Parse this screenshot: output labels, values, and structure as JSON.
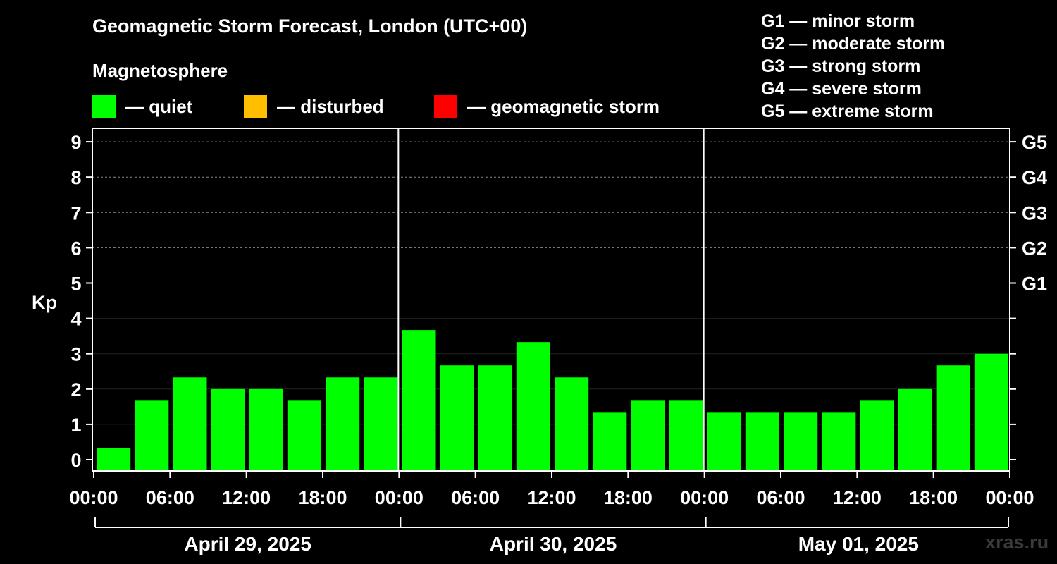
{
  "title": "Geomagnetic Storm Forecast, London (UTC+00)",
  "magnetosphere": {
    "heading": "Magnetosphere",
    "legend": [
      {
        "label": "— quiet",
        "color": "#00ff00"
      },
      {
        "label": "— disturbed",
        "color": "#ffbf00"
      },
      {
        "label": "— geomagnetic storm",
        "color": "#ff0000"
      }
    ]
  },
  "storm_scale": [
    "G1 — minor storm",
    "G2 — moderate storm",
    "G3 — strong storm",
    "G4 — severe storm",
    "G5 — extreme storm"
  ],
  "watermark": "xras.ru",
  "chart_data": {
    "type": "bar",
    "ylabel": "Kp",
    "ylim": [
      0,
      9
    ],
    "y_ticks": [
      "0",
      "1",
      "2",
      "3",
      "4",
      "5",
      "6",
      "7",
      "8",
      "9"
    ],
    "right_ticks": [
      {
        "kp": 5,
        "label": "G1"
      },
      {
        "kp": 6,
        "label": "G2"
      },
      {
        "kp": 7,
        "label": "G3"
      },
      {
        "kp": 8,
        "label": "G4"
      },
      {
        "kp": 9,
        "label": "G5"
      }
    ],
    "grid": true,
    "x_ticks": [
      "00:00",
      "06:00",
      "12:00",
      "18:00",
      "00:00",
      "06:00",
      "12:00",
      "18:00",
      "00:00",
      "06:00",
      "12:00",
      "18:00",
      "00:00"
    ],
    "days": [
      "April 29, 2025",
      "April 30, 2025",
      "May 01, 2025"
    ],
    "interval_hours": 3,
    "series": [
      {
        "values": [
          0.33,
          1.67,
          2.33,
          2.0,
          2.0,
          1.67,
          2.33,
          2.33,
          3.67,
          2.67,
          2.67,
          3.33,
          2.33,
          1.33,
          1.67,
          1.67,
          1.33,
          1.33,
          1.33,
          1.33,
          1.67,
          2.0,
          2.67,
          3.0
        ],
        "color": "#00ff00"
      }
    ]
  }
}
